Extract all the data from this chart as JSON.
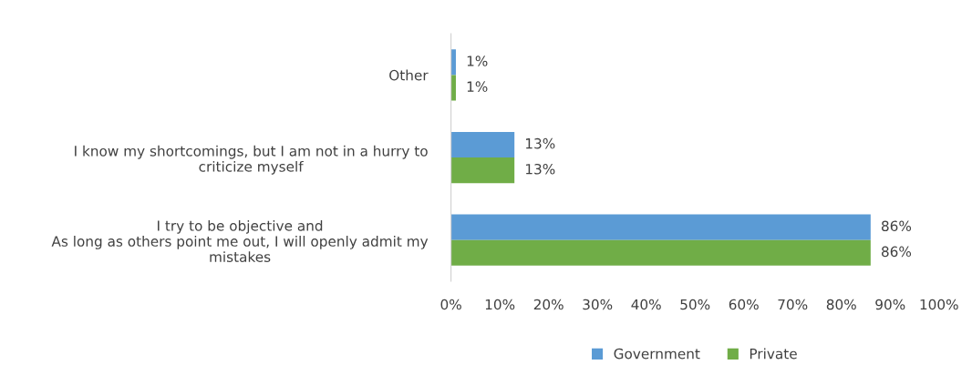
{
  "chart_data": {
    "type": "bar",
    "orientation": "horizontal",
    "categories": [
      "Other",
      "I know my shortcomings, but I am not in a hurry to\ncriticize myself",
      "I try to be objective and\nAs long as others point me out, I will openly admit my\nmistakes"
    ],
    "series": [
      {
        "name": "Government",
        "color": "#5b9bd5",
        "values": [
          1,
          13,
          86
        ],
        "value_labels": [
          "1%",
          "13%",
          "86%"
        ]
      },
      {
        "name": "Private",
        "color": "#70ad47",
        "values": [
          1,
          13,
          86
        ],
        "value_labels": [
          "1%",
          "13%",
          "86%"
        ]
      }
    ],
    "xlim": [
      0,
      100
    ],
    "xticks": [
      {
        "value": 0,
        "label": "0%"
      },
      {
        "value": 10,
        "label": "10%"
      },
      {
        "value": 20,
        "label": "20%"
      },
      {
        "value": 30,
        "label": "30%"
      },
      {
        "value": 40,
        "label": "40%"
      },
      {
        "value": 50,
        "label": "50%"
      },
      {
        "value": 60,
        "label": "60%"
      },
      {
        "value": 70,
        "label": "70%"
      },
      {
        "value": 80,
        "label": "80%"
      },
      {
        "value": 90,
        "label": "90%"
      },
      {
        "value": 100,
        "label": "100%"
      }
    ],
    "grid": false,
    "legend": "bottom"
  }
}
